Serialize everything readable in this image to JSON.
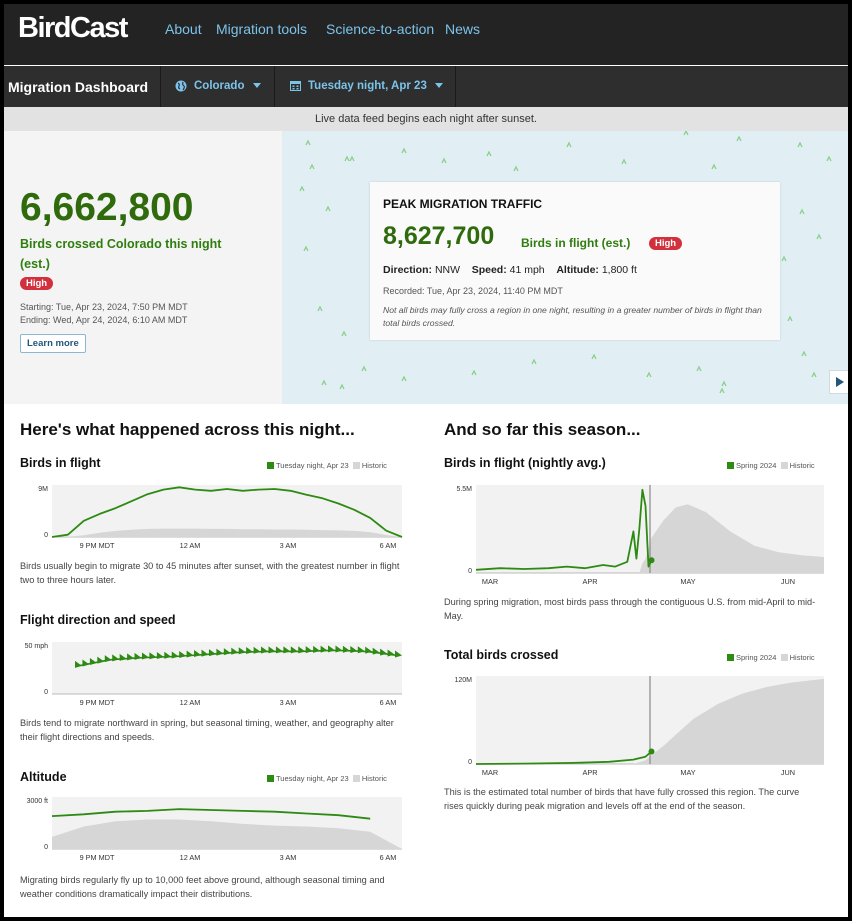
{
  "nav": {
    "logo": "BirdCast",
    "links": [
      "About",
      "Migration tools",
      "Science-to-action",
      "News"
    ]
  },
  "dashboard": {
    "title": "Migration Dashboard",
    "region": "Colorado",
    "date": "Tuesday night, Apr 23",
    "feed_notice": "Live data feed begins each night after sunset."
  },
  "summary": {
    "birds_crossed": "6,662,800",
    "crossed_label": "Birds crossed Colorado this night (est.)",
    "intensity": "High",
    "starting": "Starting: Tue, Apr 23, 2024, 7:50 PM MDT",
    "ending": "Ending: Wed, Apr 24, 2024, 6:10 AM MDT",
    "learn_more": "Learn more"
  },
  "peak": {
    "title": "PEAK MIGRATION TRAFFIC",
    "value": "8,627,700",
    "label": "Birds in flight (est.)",
    "intensity": "High",
    "direction_label": "Direction:",
    "direction": "NNW",
    "speed_label": "Speed:",
    "speed": "41 mph",
    "altitude_label": "Altitude:",
    "altitude": "1,800 ft",
    "recorded": "Recorded: Tue, Apr 23, 2024, 11:40 PM MDT",
    "note": "Not all birds may fully cross a region in one night, resulting in a greater number of birds in flight than total birds crossed."
  },
  "night": {
    "heading": "Here's what happened across this night...",
    "legend_current": "Tuesday night, Apr 23",
    "legend_historic": "Historic",
    "x_ticks": [
      "9 PM MDT",
      "12 AM",
      "3 AM",
      "6 AM"
    ],
    "colors": {
      "current": "#2d8a12",
      "historic": "#d6d6d6",
      "plot_bg": "#f2f2f2"
    },
    "flight": {
      "title": "Birds in flight",
      "ymax_label": "9M",
      "ymin_label": "0",
      "desc": "Birds usually begin to migrate 30 to 45 minutes after sunset, with the greatest number in flight two to three hours later."
    },
    "direction": {
      "title": "Flight direction and speed",
      "ymax_label": "50 mph",
      "ymin_label": "0",
      "desc": "Birds tend to migrate northward in spring, but seasonal timing, weather, and geography alter their flight directions and speeds."
    },
    "altitude": {
      "title": "Altitude",
      "ymax_label": "3000 ft",
      "ymin_label": "0",
      "desc": "Migrating birds regularly fly up to 10,000 feet above ground, although seasonal timing and weather conditions dramatically impact their distributions."
    }
  },
  "season": {
    "heading": "And so far this season...",
    "legend_current": "Spring 2024",
    "legend_historic": "Historic",
    "x_ticks": [
      "MAR",
      "APR",
      "MAY",
      "JUN"
    ],
    "flight": {
      "title": "Birds in flight (nightly avg.)",
      "ymax_label": "5.5M",
      "ymin_label": "0",
      "desc": "During spring migration, most birds pass through the contiguous U.S. from mid-April to mid-May."
    },
    "total": {
      "title": "Total birds crossed",
      "ymax_label": "120M",
      "ymin_label": "0",
      "desc": "This is the estimated total number of birds that have fully crossed this region. The curve rises quickly during peak migration and levels off at the end of the season."
    }
  },
  "chart_data": [
    {
      "type": "area",
      "title": "Birds in flight",
      "ylim": [
        0,
        9000000
      ],
      "x": [
        0,
        0.5,
        1,
        1.5,
        2,
        2.5,
        3,
        3.5,
        4,
        4.5,
        5,
        5.5,
        6,
        6.5,
        7,
        7.5,
        8,
        8.5,
        9,
        9.5,
        10,
        10.5,
        11
      ],
      "series": [
        {
          "name": "Tuesday night, Apr 23",
          "values": [
            0,
            400000,
            2800000,
            4000000,
            5000000,
            6200000,
            7400000,
            8200000,
            8600000,
            8200000,
            8000000,
            8300000,
            8000000,
            8200000,
            8300000,
            8000000,
            7300000,
            6700000,
            5800000,
            4700000,
            3300000,
            1100000,
            0
          ]
        },
        {
          "name": "Historic",
          "values": [
            0,
            50000,
            300000,
            750000,
            1050000,
            1250000,
            1400000,
            1450000,
            1450000,
            1450000,
            1400000,
            1400000,
            1350000,
            1350000,
            1300000,
            1300000,
            1250000,
            1200000,
            1150000,
            1050000,
            850000,
            350000,
            0
          ]
        }
      ],
      "x_ticks": [
        "9 PM MDT",
        "12 AM",
        "3 AM",
        "6 AM"
      ]
    },
    {
      "type": "line",
      "title": "Flight direction and speed",
      "ylim": [
        0,
        50
      ],
      "x": [
        0,
        1,
        2,
        3,
        4,
        5,
        6,
        7,
        8,
        9,
        10
      ],
      "series": [
        {
          "name": "Speed (mph)",
          "values": [
            27,
            33,
            35,
            36,
            38,
            40,
            41,
            41,
            42,
            41,
            37
          ]
        }
      ],
      "x_ticks": [
        "9 PM MDT",
        "12 AM",
        "3 AM",
        "6 AM"
      ]
    },
    {
      "type": "area",
      "title": "Altitude",
      "ylim": [
        0,
        3000
      ],
      "x": [
        0,
        1,
        2,
        3,
        4,
        5,
        6,
        7,
        8,
        9,
        10,
        11
      ],
      "series": [
        {
          "name": "Tuesday night, Apr 23",
          "values": [
            1900,
            2000,
            2150,
            2200,
            2300,
            2250,
            2200,
            2150,
            2050,
            1950,
            1750,
            null
          ]
        },
        {
          "name": "Historic",
          "values": [
            700,
            1300,
            1600,
            1700,
            1700,
            1600,
            1450,
            1350,
            1300,
            1200,
            1000,
            0
          ]
        }
      ],
      "x_ticks": [
        "9 PM MDT",
        "12 AM",
        "3 AM",
        "6 AM"
      ]
    },
    {
      "type": "area",
      "title": "Birds in flight (nightly avg.)",
      "ylim": [
        0,
        5500000
      ],
      "x": [
        0,
        8,
        16,
        24,
        30,
        36,
        42,
        46,
        50,
        52,
        53,
        54,
        55,
        56,
        57,
        58,
        62,
        66,
        70,
        76,
        84,
        92,
        100,
        108,
        115
      ],
      "series": [
        {
          "name": "Spring 2024",
          "values": [
            200000,
            300000,
            250000,
            300000,
            400000,
            300000,
            500000,
            400000,
            700000,
            2600000,
            900000,
            2800000,
            5200000,
            4200000,
            400000,
            800000,
            null,
            null,
            null,
            null,
            null,
            null,
            null,
            null,
            null
          ]
        },
        {
          "name": "Historic",
          "values": [
            0,
            0,
            0,
            0,
            0,
            0,
            0,
            0,
            0,
            0,
            0,
            0,
            600000,
            900000,
            1500000,
            2200000,
            3300000,
            4100000,
            4300000,
            3800000,
            2600000,
            1700000,
            1300000,
            1100000,
            1000000
          ]
        }
      ],
      "x_ticks": [
        "MAR",
        "APR",
        "MAY",
        "JUN"
      ]
    },
    {
      "type": "area",
      "title": "Total birds crossed",
      "ylim": [
        0,
        120000000
      ],
      "x": [
        0,
        16,
        32,
        44,
        52,
        56,
        58,
        62,
        66,
        72,
        80,
        88,
        96,
        104,
        115
      ],
      "series": [
        {
          "name": "Spring 2024",
          "values": [
            0,
            500000,
            1500000,
            3000000,
            6000000,
            10000000,
            17000000,
            null,
            null,
            null,
            null,
            null,
            null,
            null,
            null
          ]
        },
        {
          "name": "Historic",
          "values": [
            0,
            0,
            0,
            0,
            0,
            5000000,
            12000000,
            25000000,
            40000000,
            62000000,
            82000000,
            96000000,
            105000000,
            111000000,
            116000000
          ]
        }
      ],
      "x_ticks": [
        "MAR",
        "APR",
        "MAY",
        "JUN"
      ]
    }
  ]
}
